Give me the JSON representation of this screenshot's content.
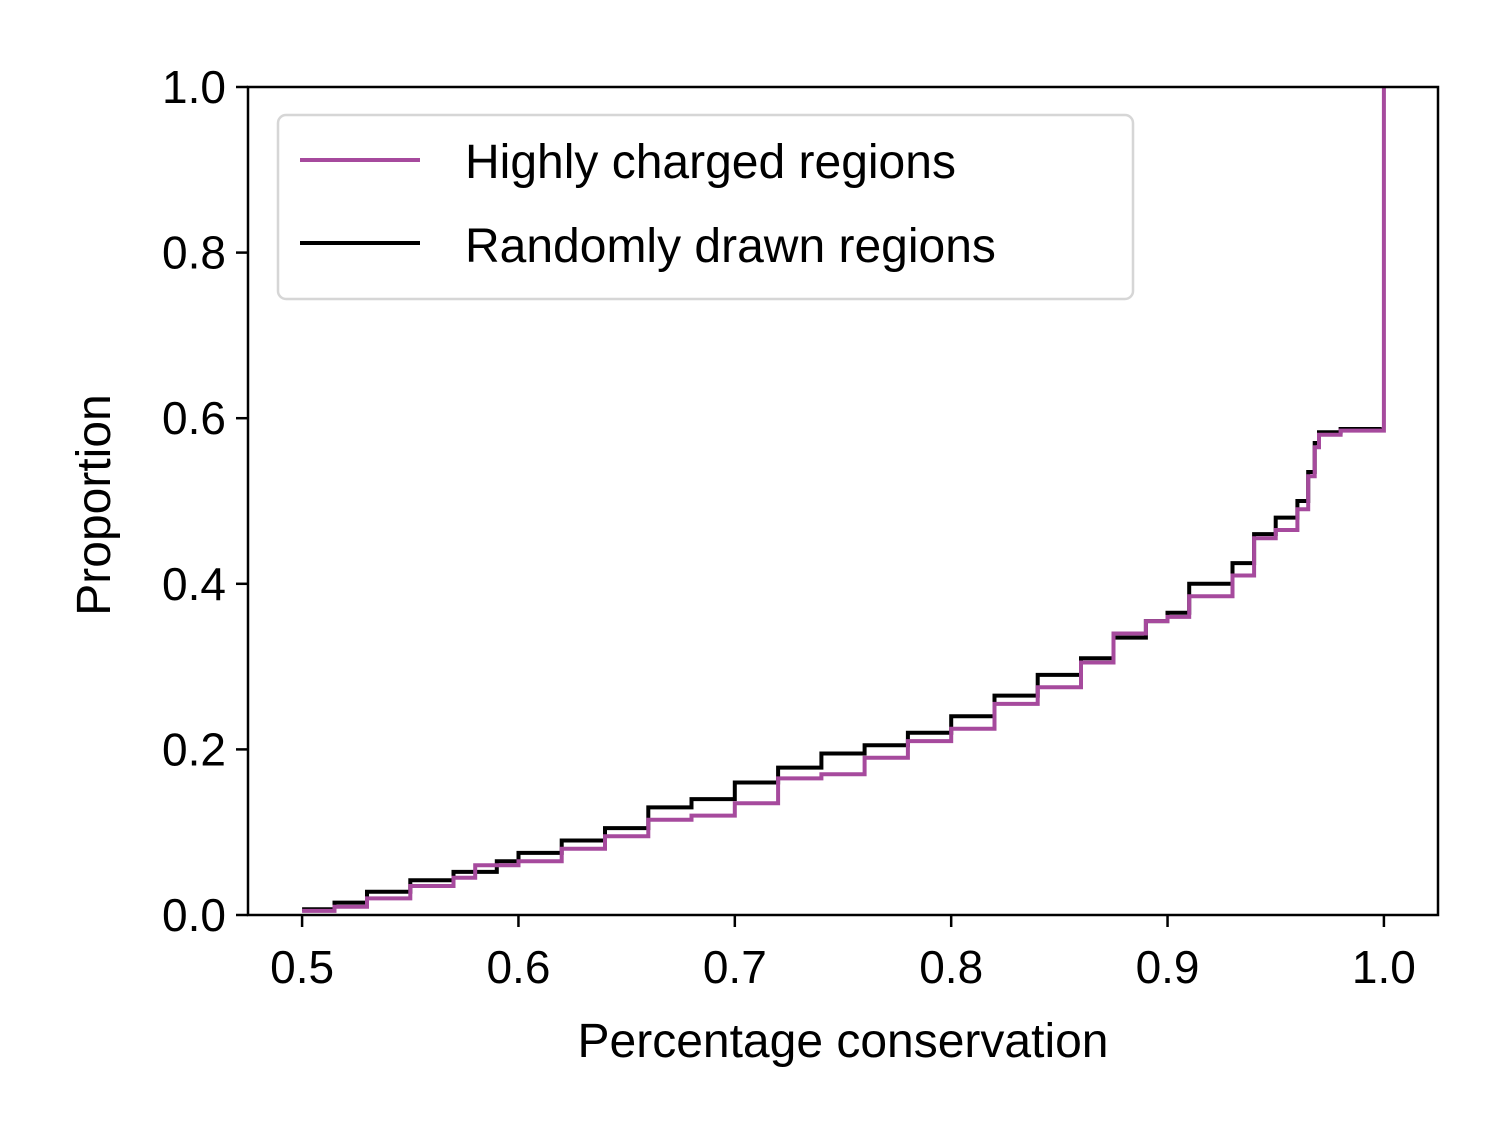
{
  "chart_data": {
    "type": "line",
    "title": "",
    "xlabel": "Percentage conservation",
    "ylabel": "Proportion",
    "xlim": [
      0.475,
      1.025
    ],
    "ylim": [
      0.0,
      1.0
    ],
    "xticks": [
      0.5,
      0.6,
      0.7,
      0.8,
      0.9,
      1.0
    ],
    "xtick_labels": [
      "0.5",
      "0.6",
      "0.7",
      "0.8",
      "0.9",
      "1.0"
    ],
    "yticks": [
      0.0,
      0.2,
      0.4,
      0.6,
      0.8,
      1.0
    ],
    "ytick_labels": [
      "0.0",
      "0.2",
      "0.4",
      "0.6",
      "0.8",
      "1.0"
    ],
    "grid": false,
    "legend_position": "top-left",
    "series": [
      {
        "name": "Highly charged regions",
        "color": "#a64a9d",
        "x": [
          0.5,
          0.515,
          0.53,
          0.55,
          0.57,
          0.58,
          0.6,
          0.62,
          0.64,
          0.66,
          0.68,
          0.7,
          0.72,
          0.74,
          0.76,
          0.78,
          0.8,
          0.82,
          0.84,
          0.86,
          0.875,
          0.89,
          0.9,
          0.91,
          0.93,
          0.94,
          0.95,
          0.96,
          0.965,
          0.968,
          0.97,
          0.98,
          0.999,
          1.0
        ],
        "y": [
          0.005,
          0.01,
          0.02,
          0.035,
          0.045,
          0.06,
          0.065,
          0.08,
          0.095,
          0.115,
          0.12,
          0.135,
          0.165,
          0.17,
          0.19,
          0.21,
          0.225,
          0.255,
          0.275,
          0.305,
          0.34,
          0.355,
          0.36,
          0.385,
          0.41,
          0.455,
          0.465,
          0.49,
          0.53,
          0.565,
          0.58,
          0.585,
          0.585,
          1.0
        ]
      },
      {
        "name": "Randomly drawn regions",
        "color": "#000000",
        "x": [
          0.5,
          0.515,
          0.53,
          0.55,
          0.57,
          0.59,
          0.6,
          0.62,
          0.64,
          0.66,
          0.68,
          0.7,
          0.72,
          0.74,
          0.76,
          0.78,
          0.8,
          0.82,
          0.84,
          0.86,
          0.875,
          0.89,
          0.9,
          0.91,
          0.93,
          0.94,
          0.95,
          0.96,
          0.965,
          0.968,
          0.97,
          0.98,
          0.999
        ],
        "y": [
          0.007,
          0.015,
          0.028,
          0.042,
          0.052,
          0.065,
          0.075,
          0.09,
          0.105,
          0.13,
          0.14,
          0.16,
          0.178,
          0.195,
          0.205,
          0.22,
          0.24,
          0.265,
          0.29,
          0.31,
          0.335,
          0.355,
          0.365,
          0.4,
          0.425,
          0.46,
          0.48,
          0.5,
          0.535,
          0.57,
          0.583,
          0.587,
          0.588
        ]
      }
    ]
  }
}
